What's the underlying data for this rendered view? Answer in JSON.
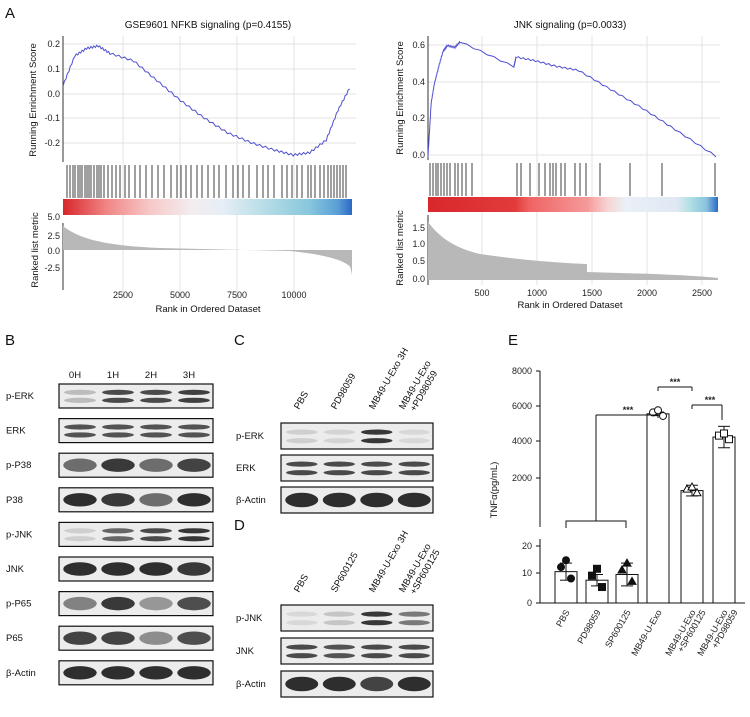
{
  "panels": {
    "A": "A",
    "B": "B",
    "C": "C",
    "D": "D",
    "E": "E"
  },
  "gsea_left": {
    "title": "GSE9601 NFKB signaling (p=0.4155)",
    "es_ylabel": "Running Enrichment Score",
    "metric_ylabel": "Ranked list metric",
    "xlabel": "Rank in Ordered Dataset",
    "es_ticks": [
      "0.2",
      "0.1",
      "0.0",
      "-0.1",
      "-0.2"
    ],
    "metric_ticks": [
      "5.0",
      "2.5",
      "0.0",
      "-2.5"
    ],
    "x_ticks": [
      "2500",
      "5000",
      "7500",
      "10000"
    ],
    "chart_data": {
      "type": "line",
      "x": [
        0,
        500,
        1000,
        1500,
        2000,
        3000,
        4000,
        5000,
        6000,
        7000,
        8000,
        9000,
        9800,
        10500,
        11200,
        11700,
        12200
      ],
      "y": [
        0.02,
        0.14,
        0.17,
        0.18,
        0.15,
        0.12,
        0.04,
        -0.04,
        -0.11,
        -0.17,
        -0.21,
        -0.24,
        -0.26,
        -0.25,
        -0.2,
        -0.08,
        0.01
      ],
      "ylim": [
        -0.28,
        0.22
      ],
      "xlim": [
        0,
        12300
      ]
    }
  },
  "gsea_right": {
    "title": "JNK signaling (p=0.0033)",
    "es_ylabel": "Running Enrichment Score",
    "metric_ylabel": "Ranked list metric",
    "xlabel": "Rank in Ordered Dataset",
    "es_ticks": [
      "0.6",
      "0.4",
      "0.2",
      "0.0"
    ],
    "metric_ticks": [
      "1.5",
      "1.0",
      "0.5",
      "0.0"
    ],
    "x_ticks": [
      "500",
      "1000",
      "1500",
      "2000",
      "2500"
    ],
    "chart_data": {
      "type": "line",
      "x": [
        0,
        30,
        60,
        100,
        140,
        180,
        250,
        300,
        800,
        820,
        1000,
        1200,
        1400,
        1700,
        2000,
        2300,
        2680
      ],
      "y": [
        0.0,
        0.28,
        0.38,
        0.47,
        0.55,
        0.58,
        0.57,
        0.6,
        0.47,
        0.52,
        0.5,
        0.47,
        0.45,
        0.35,
        0.25,
        0.14,
        0.0
      ],
      "ylim": [
        -0.02,
        0.63
      ],
      "xlim": [
        0,
        2700
      ]
    }
  },
  "blot_b": {
    "time_labels": [
      "0H",
      "1H",
      "2H",
      "3H"
    ],
    "rows": [
      "p-ERK",
      "ERK",
      "p-P38",
      "P38",
      "p-JNK",
      "JNK",
      "p-P65",
      "P65",
      "β-Actin"
    ]
  },
  "blot_c": {
    "lanes": [
      "PBS",
      "PD98059",
      "MB49-U-Exo 3H",
      "MB49-U-Exo",
      "+PD98059"
    ],
    "rows": [
      "p-ERK",
      "ERK",
      "β-Actin"
    ]
  },
  "blot_d": {
    "lanes": [
      "PBS",
      "SP600125",
      "MB49-U-Exo 3H",
      "MB49-U-Exo",
      "+SP600125"
    ],
    "rows": [
      "p-JNK",
      "JNK",
      "β-Actin"
    ]
  },
  "panel_e": {
    "ylabel": "TNFα(pg/mL)",
    "upper_ticks": [
      "8000",
      "6000",
      "4000",
      "2000"
    ],
    "lower_ticks": [
      "20",
      "10",
      "0"
    ],
    "significance": [
      "***",
      "***",
      "***"
    ],
    "chart_data": {
      "type": "bar",
      "categories": [
        "PBS",
        "PD98059",
        "SP600125",
        "MB49-U-Exo",
        "MB49-U-Exo +SP600125",
        "MB49-U-Exo +PD98059"
      ],
      "values": [
        11,
        8,
        10,
        5600,
        1300,
        4300
      ],
      "errors": [
        3,
        2,
        4,
        100,
        300,
        600
      ],
      "ylim_lower": [
        0,
        20
      ],
      "ylim_upper": [
        500,
        8000
      ],
      "ylabel": "TNFα(pg/mL)"
    }
  }
}
